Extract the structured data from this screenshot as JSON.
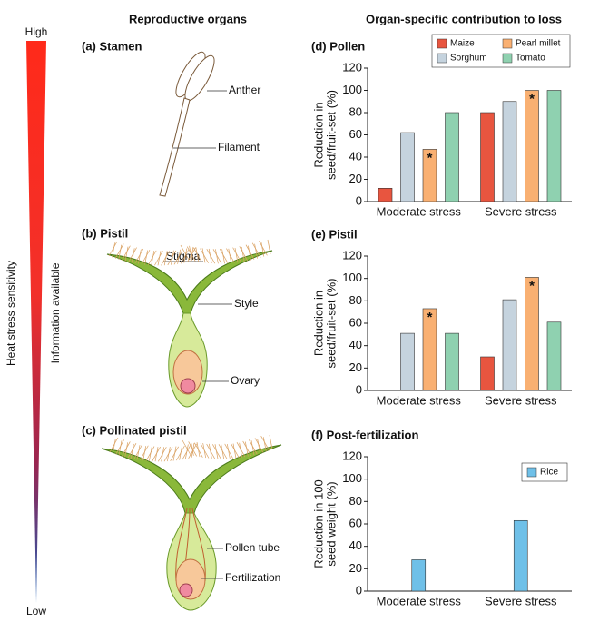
{
  "figure": {
    "scale": {
      "top": "High",
      "bottom": "Low",
      "left_label": "Heat stress sensitivity",
      "right_label": "Information available"
    },
    "column_titles": [
      "Reproductive organs",
      "Organ-specific contribution to loss"
    ],
    "diagrams": [
      {
        "title": "(a)  Stamen",
        "labels": [
          "Anther",
          "Filament"
        ]
      },
      {
        "title": "(b)  Pistil",
        "labels": [
          "Stigma",
          "Style",
          "Ovary"
        ]
      },
      {
        "title": "(c)  Pollinated pistil",
        "labels": [
          "Pollen tube",
          "Fertilization"
        ]
      }
    ]
  },
  "chart_data": [
    {
      "type": "bar",
      "title": "(d)  Pollen",
      "y_label": [
        "Reduction in",
        "seed/fruit-set (%)"
      ],
      "categories": [
        "Moderate stress",
        "Severe stress"
      ],
      "series": [
        {
          "name": "Maize",
          "color": "#e8553f",
          "values": [
            12,
            80
          ]
        },
        {
          "name": "Sorghum",
          "color": "#c5d3de",
          "values": [
            62,
            90
          ]
        },
        {
          "name": "Pearl millet",
          "color": "#f9b072",
          "values": [
            47,
            100
          ],
          "notes": [
            "*",
            "*"
          ]
        },
        {
          "name": "Tomato",
          "color": "#8fd1b0",
          "values": [
            80,
            100
          ]
        }
      ],
      "ylim": [
        0,
        120
      ],
      "yticks": [
        0,
        20,
        40,
        60,
        80,
        100,
        120
      ],
      "legend": "upper right"
    },
    {
      "type": "bar",
      "title": "(e)  Pistil",
      "y_label": [
        "Reduction in",
        "seed/fruit-set (%)"
      ],
      "categories": [
        "Moderate stress",
        "Severe stress"
      ],
      "series": [
        {
          "name": "Maize",
          "color": "#e8553f",
          "values": [
            null,
            30
          ]
        },
        {
          "name": "Sorghum",
          "color": "#c5d3de",
          "values": [
            51,
            81
          ]
        },
        {
          "name": "Pearl millet",
          "color": "#f9b072",
          "values": [
            73,
            101
          ],
          "notes": [
            "*",
            "*"
          ]
        },
        {
          "name": "Tomato",
          "color": "#8fd1b0",
          "values": [
            51,
            61
          ]
        }
      ],
      "ylim": [
        0,
        120
      ],
      "yticks": [
        0,
        20,
        40,
        60,
        80,
        100,
        120
      ]
    },
    {
      "type": "bar",
      "title": "(f)  Post-fertilization",
      "y_label": [
        "Reduction in 100",
        "seed weight (%)"
      ],
      "categories": [
        "Moderate stress",
        "Severe stress"
      ],
      "series": [
        {
          "name": "Rice",
          "color": "#6fc0e8",
          "values": [
            28,
            63
          ]
        }
      ],
      "ylim": [
        0,
        120
      ],
      "yticks": [
        0,
        20,
        40,
        60,
        80,
        100,
        120
      ],
      "legend": "upper right"
    }
  ]
}
